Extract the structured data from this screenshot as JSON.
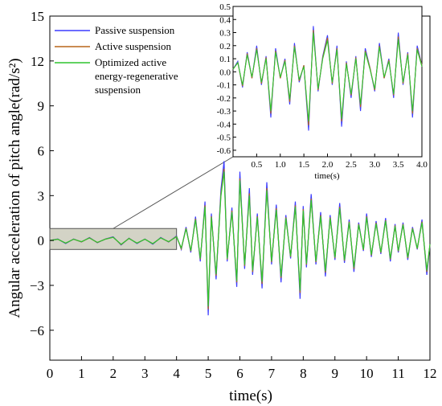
{
  "chart_data": [
    {
      "type": "line",
      "xlabel": "time(s)",
      "ylabel": "Angular acceleration of pitch angle(rad/s²)",
      "xlim": [
        0,
        12
      ],
      "ylim": [
        -8,
        15
      ],
      "xticks": [
        "0",
        "1",
        "2",
        "3",
        "4",
        "5",
        "6",
        "7",
        "8",
        "9",
        "10",
        "11",
        "12"
      ],
      "yticks": [
        "-6",
        "-3",
        "0",
        "3",
        "6",
        "9",
        "12",
        "15"
      ],
      "grid": false,
      "legend_position": "top-left",
      "highlight_region": {
        "x": [
          0,
          4
        ],
        "y": [
          -0.6,
          0.8
        ]
      },
      "x": [
        0,
        0.25,
        0.5,
        0.75,
        1,
        1.25,
        1.5,
        1.75,
        2,
        2.25,
        2.5,
        2.75,
        3,
        3.25,
        3.5,
        3.75,
        4,
        4.15,
        4.3,
        4.45,
        4.6,
        4.75,
        4.9,
        5,
        5.1,
        5.25,
        5.4,
        5.5,
        5.6,
        5.75,
        5.9,
        6,
        6.15,
        6.3,
        6.4,
        6.55,
        6.7,
        6.85,
        7,
        7.15,
        7.3,
        7.45,
        7.6,
        7.75,
        7.9,
        8,
        8.1,
        8.25,
        8.4,
        8.55,
        8.7,
        8.85,
        9,
        9.15,
        9.3,
        9.45,
        9.6,
        9.75,
        9.9,
        10,
        10.15,
        10.3,
        10.45,
        10.6,
        10.75,
        10.9,
        11,
        11.15,
        11.3,
        11.45,
        11.6,
        11.75,
        11.9,
        12
      ],
      "series": [
        {
          "name": "Passive suspension",
          "color": "#3b3bff",
          "values": [
            0,
            0.1,
            -0.2,
            0.1,
            -0.1,
            0.2,
            -0.15,
            0.1,
            0.25,
            -0.3,
            0.15,
            -0.2,
            0.1,
            -0.25,
            0.2,
            -0.1,
            0.3,
            -0.6,
            0.9,
            -0.8,
            1.6,
            -1.4,
            2.6,
            -5,
            1.8,
            -2.6,
            3.4,
            5.3,
            -1.4,
            2.2,
            -3.1,
            4.6,
            -1.9,
            3.5,
            -2.3,
            1.8,
            -3.2,
            3.9,
            -1.6,
            2.4,
            -2.8,
            1.7,
            -1.2,
            2.6,
            -3.9,
            2.3,
            -1.8,
            3.1,
            -1.6,
            1.9,
            -2.4,
            1.7,
            -1.3,
            2.5,
            -1.5,
            1.4,
            -2.1,
            1.2,
            -0.7,
            1.8,
            -1.1,
            1.3,
            -0.9,
            1.5,
            -1.4,
            1.1,
            -0.8,
            1.2,
            -1.3,
            0.9,
            -0.6,
            1.4,
            -2.3,
            -0.3
          ]
        },
        {
          "name": "Active suspension",
          "color": "#b8651a",
          "values": [
            0,
            0.09,
            -0.18,
            0.09,
            -0.09,
            0.18,
            -0.14,
            0.09,
            0.22,
            -0.27,
            0.14,
            -0.18,
            0.09,
            -0.22,
            0.18,
            -0.09,
            0.27,
            -0.55,
            0.82,
            -0.72,
            1.45,
            -1.26,
            2.35,
            -4.6,
            1.62,
            -2.35,
            3.1,
            4.8,
            -1.26,
            2,
            -2.8,
            4.15,
            -1.7,
            3.15,
            -2.1,
            1.62,
            -2.9,
            3.5,
            -1.45,
            2.15,
            -2.5,
            1.55,
            -1.1,
            2.35,
            -3.5,
            2.1,
            -1.62,
            2.8,
            -1.45,
            1.7,
            -2.15,
            1.55,
            -1.18,
            2.25,
            -1.35,
            1.26,
            -1.9,
            1.1,
            -0.63,
            1.62,
            -1,
            1.18,
            -0.82,
            1.35,
            -1.26,
            1,
            -0.72,
            1.1,
            -1.18,
            0.82,
            -0.55,
            1.26,
            -2.1,
            -0.27
          ]
        },
        {
          "name": "Optimized active energy-regenerative suspension",
          "color": "#2fc42f",
          "values": [
            0,
            0.08,
            -0.17,
            0.08,
            -0.08,
            0.17,
            -0.13,
            0.08,
            0.21,
            -0.25,
            0.13,
            -0.17,
            0.08,
            -0.21,
            0.17,
            -0.08,
            0.25,
            -0.5,
            0.78,
            -0.68,
            1.38,
            -1.2,
            2.25,
            -4.4,
            1.55,
            -2.25,
            2.95,
            4.6,
            -1.2,
            1.9,
            -2.7,
            4,
            -1.62,
            3,
            -2,
            1.55,
            -2.75,
            3.35,
            -1.38,
            2.05,
            -2.4,
            1.48,
            -1.05,
            2.25,
            -3.35,
            2,
            -1.55,
            2.7,
            -1.38,
            1.62,
            -2.05,
            1.48,
            -1.12,
            2.15,
            -1.3,
            1.2,
            -1.8,
            1.05,
            -0.6,
            1.55,
            -0.95,
            1.12,
            -0.78,
            1.3,
            -1.2,
            0.95,
            -0.68,
            1.05,
            -1.12,
            0.78,
            -0.52,
            1.2,
            -2,
            -0.25
          ]
        }
      ]
    },
    {
      "type": "line",
      "xlabel": "time(s)",
      "ylabel": "",
      "xlim": [
        0,
        4
      ],
      "ylim": [
        -0.65,
        0.5
      ],
      "xticks": [
        "0.5",
        "1.0",
        "1.5",
        "2.0",
        "2.5",
        "3.0",
        "3.5",
        "4.0"
      ],
      "yticks": [
        "0.5",
        "0.4",
        "0.3",
        "0.2",
        "0.1",
        "0.0",
        "-0.1",
        "-0.2",
        "-0.3",
        "-0.4",
        "-0.5",
        "-0.6"
      ],
      "grid": false,
      "x": [
        0,
        0.1,
        0.2,
        0.3,
        0.4,
        0.5,
        0.6,
        0.7,
        0.8,
        0.9,
        1,
        1.1,
        1.2,
        1.3,
        1.4,
        1.5,
        1.6,
        1.7,
        1.8,
        1.9,
        2,
        2.1,
        2.2,
        2.3,
        2.4,
        2.5,
        2.6,
        2.7,
        2.8,
        2.9,
        3,
        3.1,
        3.2,
        3.3,
        3.4,
        3.5,
        3.6,
        3.7,
        3.8,
        3.9,
        4
      ],
      "series": [
        {
          "name": "Passive suspension",
          "color": "#3b3bff",
          "values": [
            0.02,
            0.08,
            -0.12,
            0.15,
            -0.05,
            0.2,
            -0.1,
            0.12,
            -0.35,
            0.18,
            -0.05,
            0.1,
            -0.25,
            0.22,
            -0.08,
            0.05,
            -0.45,
            0.35,
            -0.15,
            0.12,
            0.28,
            -0.1,
            0.2,
            -0.42,
            0.08,
            -0.2,
            0.12,
            -0.3,
            0.18,
            0.03,
            -0.15,
            0.22,
            -0.05,
            0.1,
            -0.2,
            0.3,
            -0.1,
            0.15,
            -0.35,
            0.2,
            0.05
          ]
        },
        {
          "name": "Active suspension",
          "color": "#b8651a",
          "values": [
            0.02,
            0.07,
            -0.11,
            0.14,
            -0.05,
            0.18,
            -0.09,
            0.11,
            -0.32,
            0.16,
            -0.05,
            0.09,
            -0.23,
            0.2,
            -0.07,
            0.05,
            -0.41,
            0.32,
            -0.14,
            0.11,
            0.26,
            -0.09,
            0.18,
            -0.38,
            0.07,
            -0.18,
            0.11,
            -0.27,
            0.16,
            0.03,
            -0.14,
            0.2,
            -0.05,
            0.09,
            -0.18,
            0.27,
            -0.09,
            0.14,
            -0.32,
            0.18,
            0.05
          ]
        },
        {
          "name": "Optimized active energy-regenerative suspension",
          "color": "#2fc42f",
          "values": [
            0.02,
            0.07,
            -0.1,
            0.13,
            -0.04,
            0.17,
            -0.08,
            0.1,
            -0.3,
            0.15,
            -0.04,
            0.08,
            -0.21,
            0.19,
            -0.06,
            0.04,
            -0.38,
            0.3,
            -0.13,
            0.1,
            0.24,
            -0.08,
            0.17,
            -0.36,
            0.06,
            -0.17,
            0.1,
            -0.25,
            0.15,
            0.02,
            -0.13,
            0.19,
            -0.04,
            0.08,
            -0.17,
            0.25,
            -0.08,
            0.13,
            -0.3,
            0.17,
            0.04
          ]
        }
      ]
    }
  ]
}
